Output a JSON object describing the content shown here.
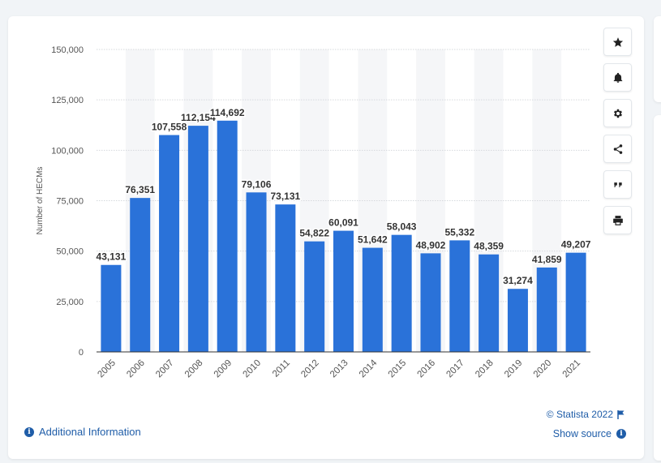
{
  "chart_data": {
    "type": "bar",
    "categories": [
      "2005",
      "2006",
      "2007",
      "2008",
      "2009",
      "2010",
      "2011",
      "2012",
      "2013",
      "2014",
      "2015",
      "2016",
      "2017",
      "2018",
      "2019",
      "2020",
      "2021"
    ],
    "values": [
      43131,
      76351,
      107558,
      112154,
      114692,
      79106,
      73131,
      54822,
      60091,
      51642,
      58043,
      48902,
      55332,
      48359,
      31274,
      41859,
      49207
    ],
    "value_labels": [
      "43,131",
      "76,351",
      "107,558",
      "112,154",
      "114,692",
      "79,106",
      "73,131",
      "54,822",
      "60,091",
      "51,642",
      "58,043",
      "48,902",
      "55,332",
      "48,359",
      "31,274",
      "41,859",
      "49,207"
    ],
    "title": "",
    "xlabel": "",
    "ylabel": "Number of HECMs",
    "ylim": [
      0,
      150000
    ],
    "yticks": [
      0,
      25000,
      50000,
      75000,
      100000,
      125000,
      150000
    ],
    "ytick_labels": [
      "0",
      "25,000",
      "50,000",
      "75,000",
      "100,000",
      "125,000",
      "150,000"
    ],
    "grid": true,
    "bar_color": "#2a72d9"
  },
  "footer": {
    "additional_info": "Additional Information",
    "copyright": "© Statista 2022",
    "show_source": "Show source"
  },
  "icons": {
    "info": "i",
    "toolbar": [
      "star-icon",
      "bell-icon",
      "gear-icon",
      "share-icon",
      "quote-icon",
      "print-icon"
    ]
  }
}
